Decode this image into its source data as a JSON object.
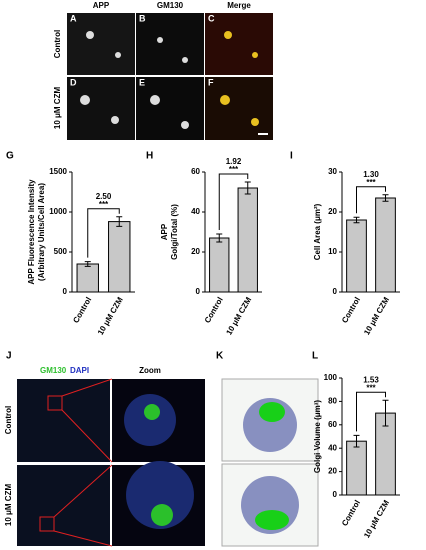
{
  "chart_data": [
    {
      "type": "bar",
      "panel": "G",
      "y_label": [
        "APP Fluorescence Intensity",
        "(Arbitrary Units/Cell Area)"
      ],
      "categories": [
        "Control",
        "10 μM CZM"
      ],
      "values": [
        350,
        880
      ],
      "errors": [
        30,
        60
      ],
      "color": "#c8c8c8",
      "ylim": [
        0,
        1500
      ],
      "yticks": [
        0,
        500,
        1000,
        1500
      ],
      "annotation": "2.50",
      "significance": "***"
    },
    {
      "type": "bar",
      "panel": "H",
      "y_label": [
        "APP",
        "Golgi/Total (%)"
      ],
      "categories": [
        "Control",
        "10 μM CZM"
      ],
      "values": [
        27,
        52
      ],
      "errors": [
        2,
        3
      ],
      "color": "#c8c8c8",
      "ylim": [
        0,
        60
      ],
      "yticks": [
        0,
        20,
        40,
        60
      ],
      "annotation": "1.92",
      "significance": "***"
    },
    {
      "type": "bar",
      "panel": "I",
      "y_label": [
        "Cell Area (μm²)"
      ],
      "categories": [
        "Control",
        "10 μM CZM"
      ],
      "values": [
        18,
        23.5
      ],
      "errors": [
        0.7,
        0.8
      ],
      "color": "#c8c8c8",
      "ylim": [
        0,
        30
      ],
      "yticks": [
        0,
        10,
        20,
        30
      ],
      "annotation": "1.30",
      "significance": "***"
    },
    {
      "type": "bar",
      "panel": "L",
      "y_label": [
        "Golgi Volume (μm³)"
      ],
      "categories": [
        "Control",
        "10 μM CZM"
      ],
      "values": [
        46,
        70
      ],
      "errors": [
        5,
        11
      ],
      "color": "#c8c8c8",
      "ylim": [
        0,
        100
      ],
      "yticks": [
        0,
        20,
        40,
        60,
        80,
        100
      ],
      "annotation": "1.53",
      "significance": "***"
    }
  ],
  "top": {
    "column_labels": [
      "APP",
      "GM130",
      "Merge"
    ],
    "row_labels": [
      "Control",
      "10 μM CZM"
    ],
    "letters": [
      "A",
      "B",
      "C",
      "D",
      "E",
      "F"
    ]
  },
  "bottom": {
    "letter_j": "J",
    "stain_labels": [
      "GM130",
      "DAPI"
    ],
    "zoom_label": "Zoom",
    "row_labels": [
      "Control",
      "10 μM CZM"
    ],
    "letter_k": "K"
  }
}
